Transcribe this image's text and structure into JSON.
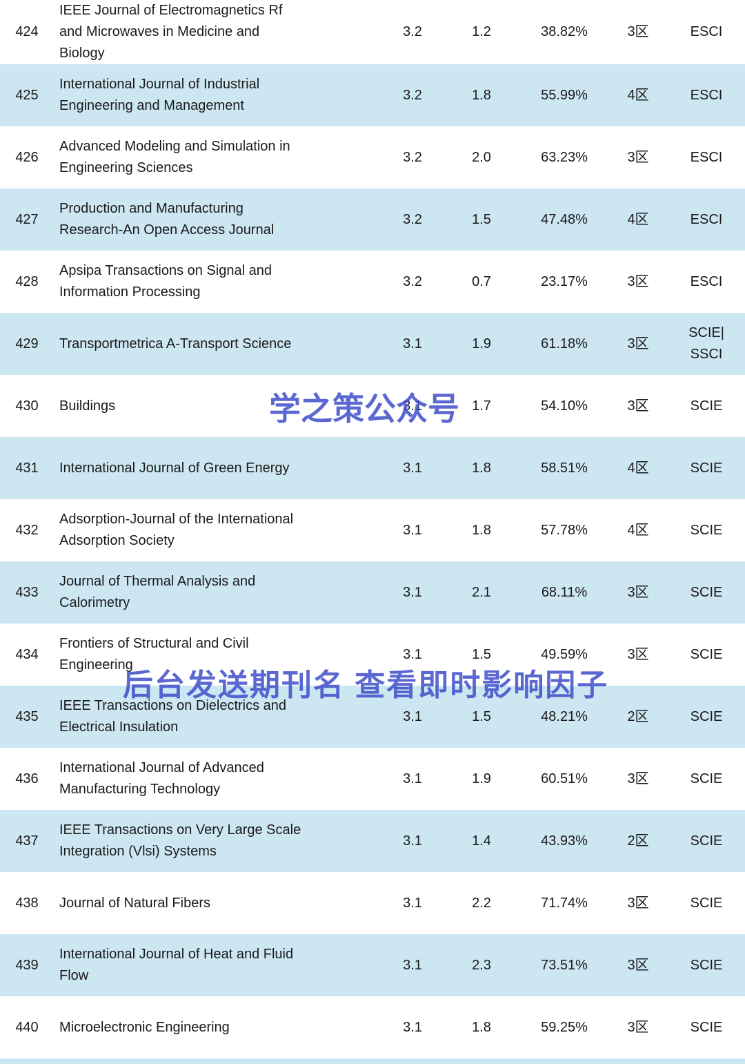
{
  "page": {
    "background_color": "#ffffff",
    "stripe_color": "#cde7f2",
    "text_color": "#1a1a1a",
    "watermark_color": "#3f4ec9"
  },
  "watermarks": {
    "first": "学之策公众号",
    "second": "后台发送期刊名 查看即时影响因子"
  },
  "table": {
    "rows": [
      {
        "rank": "424",
        "name": "IEEE Journal of Electromagnetics Rf\nand Microwaves in Medicine and\nBiology",
        "metric1": "3.2",
        "metric2": "1.2",
        "percent": "38.82%",
        "partition": "3区",
        "index_type": "ESCI"
      },
      {
        "rank": "425",
        "name": "International Journal of Industrial\nEngineering and Management",
        "metric1": "3.2",
        "metric2": "1.8",
        "percent": "55.99%",
        "partition": "4区",
        "index_type": "ESCI"
      },
      {
        "rank": "426",
        "name": "Advanced Modeling and Simulation in\nEngineering Sciences",
        "metric1": "3.2",
        "metric2": "2.0",
        "percent": "63.23%",
        "partition": "3区",
        "index_type": "ESCI"
      },
      {
        "rank": "427",
        "name": "Production and Manufacturing\nResearch-An Open Access Journal",
        "metric1": "3.2",
        "metric2": "1.5",
        "percent": "47.48%",
        "partition": "4区",
        "index_type": "ESCI"
      },
      {
        "rank": "428",
        "name": "Apsipa Transactions on Signal and\nInformation Processing",
        "metric1": "3.2",
        "metric2": "0.7",
        "percent": "23.17%",
        "partition": "3区",
        "index_type": "ESCI"
      },
      {
        "rank": "429",
        "name": "Transportmetrica A-Transport Science",
        "metric1": "3.1",
        "metric2": "1.9",
        "percent": "61.18%",
        "partition": "3区",
        "index_type": "SCIE|\nSSCI"
      },
      {
        "rank": "430",
        "name": "Buildings",
        "metric1": "3.1",
        "metric2": "1.7",
        "percent": "54.10%",
        "partition": "3区",
        "index_type": "SCIE"
      },
      {
        "rank": "431",
        "name": "International Journal of Green Energy",
        "metric1": "3.1",
        "metric2": "1.8",
        "percent": "58.51%",
        "partition": "4区",
        "index_type": "SCIE"
      },
      {
        "rank": "432",
        "name": "Adsorption-Journal of the International\nAdsorption Society",
        "metric1": "3.1",
        "metric2": "1.8",
        "percent": "57.78%",
        "partition": "4区",
        "index_type": "SCIE"
      },
      {
        "rank": "433",
        "name": "Journal of Thermal Analysis and\nCalorimetry",
        "metric1": "3.1",
        "metric2": "2.1",
        "percent": "68.11%",
        "partition": "3区",
        "index_type": "SCIE"
      },
      {
        "rank": "434",
        "name": "Frontiers of Structural and Civil\nEngineering",
        "metric1": "3.1",
        "metric2": "1.5",
        "percent": "49.59%",
        "partition": "3区",
        "index_type": "SCIE"
      },
      {
        "rank": "435",
        "name": "IEEE Transactions on Dielectrics and\nElectrical Insulation",
        "metric1": "3.1",
        "metric2": "1.5",
        "percent": "48.21%",
        "partition": "2区",
        "index_type": "SCIE"
      },
      {
        "rank": "436",
        "name": "International Journal of Advanced\nManufacturing Technology",
        "metric1": "3.1",
        "metric2": "1.9",
        "percent": "60.51%",
        "partition": "3区",
        "index_type": "SCIE"
      },
      {
        "rank": "437",
        "name": "IEEE Transactions on Very Large Scale\nIntegration (Vlsi) Systems",
        "metric1": "3.1",
        "metric2": "1.4",
        "percent": "43.93%",
        "partition": "2区",
        "index_type": "SCIE"
      },
      {
        "rank": "438",
        "name": "Journal of Natural Fibers",
        "metric1": "3.1",
        "metric2": "2.2",
        "percent": "71.74%",
        "partition": "3区",
        "index_type": "SCIE"
      },
      {
        "rank": "439",
        "name": "International Journal of Heat and Fluid\nFlow",
        "metric1": "3.1",
        "metric2": "2.3",
        "percent": "73.51%",
        "partition": "3区",
        "index_type": "SCIE"
      },
      {
        "rank": "440",
        "name": "Microelectronic Engineering",
        "metric1": "3.1",
        "metric2": "1.8",
        "percent": "59.25%",
        "partition": "3区",
        "index_type": "SCIE"
      }
    ]
  }
}
